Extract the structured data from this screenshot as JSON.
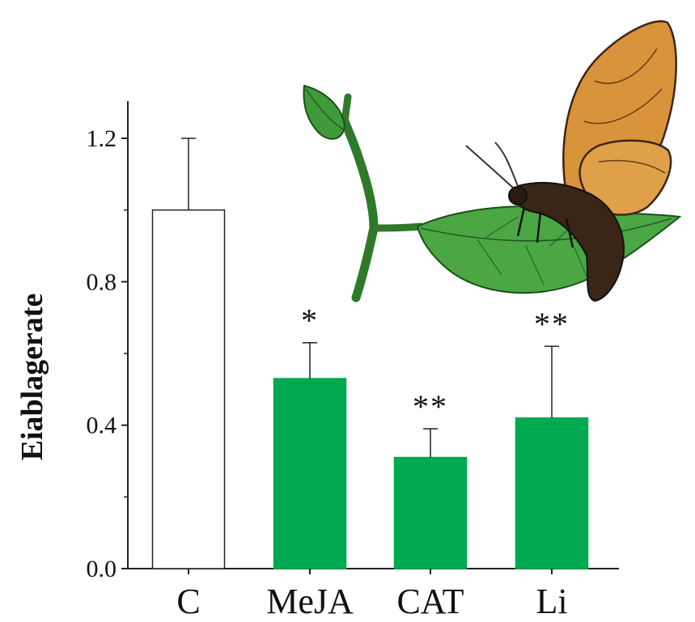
{
  "chart_data": {
    "type": "bar",
    "categories": [
      "C",
      "MeJA",
      "CAT",
      "Li"
    ],
    "values": [
      1.0,
      0.53,
      0.31,
      0.42
    ],
    "errors": [
      0.2,
      0.1,
      0.08,
      0.2
    ],
    "significance": [
      "",
      "*",
      "**",
      "**"
    ],
    "bar_colors": [
      "#ffffff",
      "#00a84f",
      "#00a84f",
      "#00a84f"
    ],
    "ylabel": "Eiablagerate",
    "ylim": [
      0,
      1.3
    ],
    "yticks": [
      0.0,
      0.4,
      0.8,
      1.2
    ],
    "ytick_labels": [
      "0.0",
      "0.4",
      "0.8",
      "1.2"
    ],
    "grid": false,
    "illustration": "moth-on-leaf"
  },
  "colors": {
    "accent": "#00a84f",
    "axis": "#222222",
    "leaf": "#3f9a3a",
    "moth_wing": "#d9933a",
    "moth_body": "#3a2616"
  }
}
